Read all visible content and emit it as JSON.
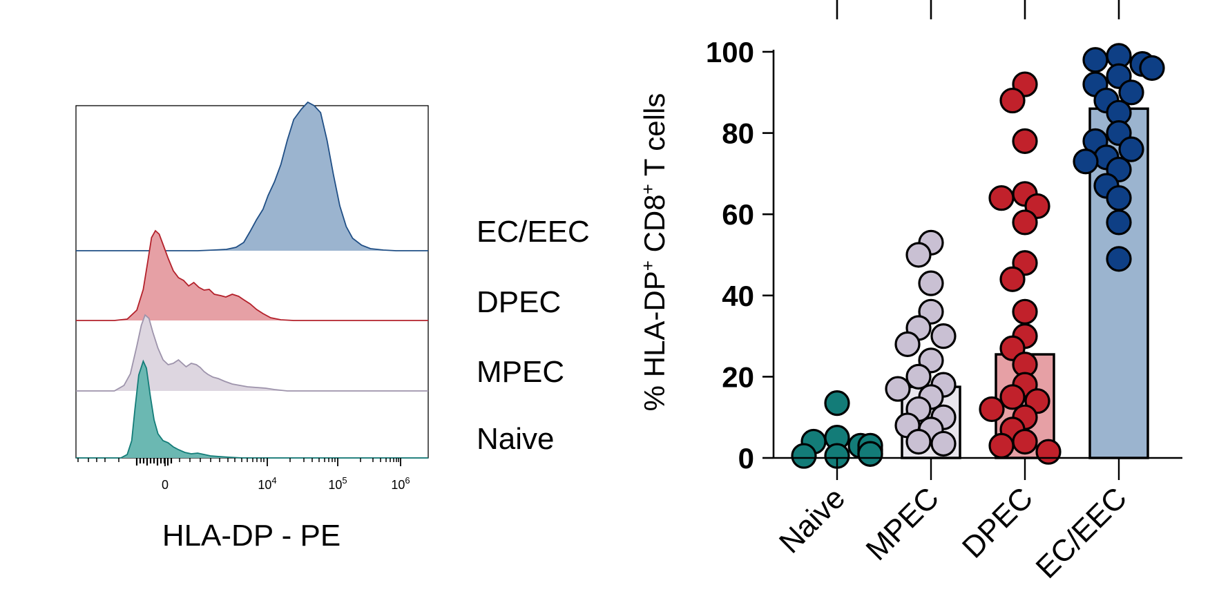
{
  "chart_data": [
    {
      "type": "area",
      "xlabel": "HLA-DP - PE",
      "x_ticks": [
        {
          "base": "0",
          "exp": ""
        },
        {
          "base": "10",
          "exp": "4"
        },
        {
          "base": "10",
          "exp": "5"
        },
        {
          "base": "10",
          "exp": "6"
        }
      ],
      "series": [
        {
          "name": "EC/EEC",
          "color": "#1f4e85",
          "fill": "#9bb4cf",
          "points": [
            [
              0,
              0
            ],
            [
              100,
              0
            ],
            [
              190,
              0
            ],
            [
              215,
              1
            ],
            [
              235,
              2
            ],
            [
              250,
              5
            ],
            [
              262,
              12
            ],
            [
              272,
              28
            ],
            [
              282,
              45
            ],
            [
              292,
              60
            ],
            [
              300,
              80
            ],
            [
              310,
              100
            ],
            [
              320,
              125
            ],
            [
              330,
              160
            ],
            [
              340,
              190
            ],
            [
              352,
              205
            ],
            [
              362,
              215
            ],
            [
              372,
              210
            ],
            [
              382,
              200
            ],
            [
              392,
              160
            ],
            [
              402,
              110
            ],
            [
              412,
              65
            ],
            [
              422,
              35
            ],
            [
              432,
              18
            ],
            [
              446,
              8
            ],
            [
              460,
              3
            ],
            [
              480,
              1
            ],
            [
              500,
              0
            ],
            [
              550,
              0
            ]
          ]
        },
        {
          "name": "DPEC",
          "color": "#b3202a",
          "fill": "#e6a0a5",
          "points": [
            [
              0,
              0
            ],
            [
              60,
              0
            ],
            [
              80,
              2
            ],
            [
              95,
              15
            ],
            [
              105,
              45
            ],
            [
              112,
              85
            ],
            [
              118,
              120
            ],
            [
              124,
              130
            ],
            [
              130,
              125
            ],
            [
              136,
              110
            ],
            [
              144,
              90
            ],
            [
              152,
              72
            ],
            [
              160,
              62
            ],
            [
              168,
              58
            ],
            [
              176,
              50
            ],
            [
              184,
              55
            ],
            [
              192,
              48
            ],
            [
              200,
              44
            ],
            [
              208,
              45
            ],
            [
              216,
              38
            ],
            [
              226,
              36
            ],
            [
              234,
              34
            ],
            [
              244,
              38
            ],
            [
              254,
              35
            ],
            [
              262,
              30
            ],
            [
              272,
              24
            ],
            [
              282,
              16
            ],
            [
              292,
              10
            ],
            [
              304,
              4
            ],
            [
              320,
              1
            ],
            [
              340,
              0
            ],
            [
              550,
              0
            ]
          ]
        },
        {
          "name": "MPEC",
          "color": "#9d93ab",
          "fill": "#ddd6e0",
          "points": [
            [
              0,
              0
            ],
            [
              60,
              0
            ],
            [
              75,
              8
            ],
            [
              85,
              25
            ],
            [
              95,
              65
            ],
            [
              102,
              95
            ],
            [
              108,
              110
            ],
            [
              114,
              105
            ],
            [
              120,
              85
            ],
            [
              128,
              62
            ],
            [
              136,
              45
            ],
            [
              144,
              38
            ],
            [
              152,
              40
            ],
            [
              160,
              45
            ],
            [
              166,
              40
            ],
            [
              172,
              35
            ],
            [
              180,
              40
            ],
            [
              188,
              38
            ],
            [
              194,
              34
            ],
            [
              200,
              28
            ],
            [
              206,
              24
            ],
            [
              214,
              20
            ],
            [
              222,
              18
            ],
            [
              232,
              14
            ],
            [
              244,
              10
            ],
            [
              256,
              8
            ],
            [
              268,
              6
            ],
            [
              282,
              5
            ],
            [
              296,
              4
            ],
            [
              310,
              2
            ],
            [
              330,
              0
            ],
            [
              550,
              0
            ]
          ]
        },
        {
          "name": "Naive",
          "color": "#137c78",
          "fill": "#6bb8b2",
          "points": [
            [
              0,
              0
            ],
            [
              70,
              0
            ],
            [
              80,
              5
            ],
            [
              87,
              25
            ],
            [
              92,
              70
            ],
            [
              98,
              120
            ],
            [
              105,
              140
            ],
            [
              110,
              130
            ],
            [
              116,
              90
            ],
            [
              122,
              55
            ],
            [
              128,
              35
            ],
            [
              136,
              25
            ],
            [
              144,
              22
            ],
            [
              152,
              16
            ],
            [
              160,
              12
            ],
            [
              170,
              8
            ],
            [
              180,
              6
            ],
            [
              190,
              7
            ],
            [
              200,
              5
            ],
            [
              210,
              3
            ],
            [
              224,
              2
            ],
            [
              240,
              1
            ],
            [
              260,
              0
            ],
            [
              550,
              0
            ]
          ]
        }
      ]
    },
    {
      "type": "bar",
      "ylabel": "% HLA-DP",
      "ylabel_sup1": "+",
      "ylabel_mid": " CD8",
      "ylabel_sup2": "+",
      "ylabel_end": " T cells",
      "ylim": [
        0,
        100
      ],
      "y_ticks": [
        "0",
        "20",
        "40",
        "60",
        "80",
        "100"
      ],
      "categories": [
        "Naive",
        "MPEC",
        "DPEC",
        "EC/EEC"
      ],
      "values": [
        0,
        17.5,
        25.5,
        86
      ],
      "bar_fills": [
        "#ffffff",
        "#e9e6ed",
        "#e6a0a5",
        "#9bb4cf"
      ],
      "point_fills": [
        "#137c78",
        "#c9c0d3",
        "#c1212b",
        "#0e3f85"
      ],
      "points": [
        [
          13.5,
          5,
          4,
          3,
          2,
          1.5,
          1,
          0.5,
          0.5,
          1,
          2,
          3,
          1
        ],
        [
          53,
          50,
          43,
          36,
          32,
          30,
          28,
          24,
          20,
          18,
          17,
          15,
          12,
          10,
          8,
          7,
          4,
          3.5
        ],
        [
          92,
          88,
          78,
          65,
          64,
          62,
          58,
          48,
          44,
          36,
          30,
          27,
          23,
          18,
          15,
          14,
          12,
          10,
          7,
          4,
          3,
          1.5
        ],
        [
          99,
          98,
          97,
          96,
          94,
          92,
          90,
          88,
          85,
          80,
          78,
          76,
          74,
          73,
          71,
          67,
          64,
          58,
          49
        ]
      ]
    }
  ]
}
